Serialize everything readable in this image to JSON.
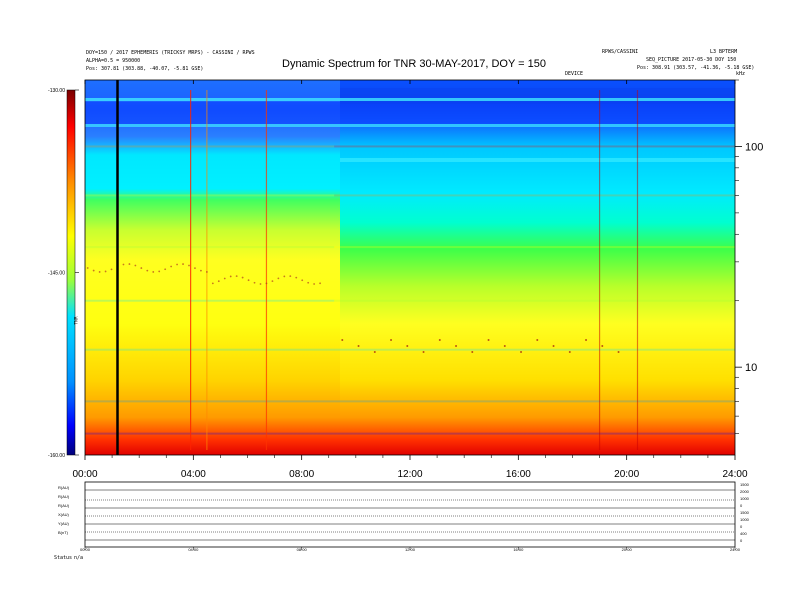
{
  "header": {
    "left_line1": "DOY=150 / 2017 EPHEMERIS (TRICKSY MRPS) - CASSINI / RPWS",
    "left_line2": "ALPHA=0.5 = 950000",
    "left_line3": "Pos: 307.81 (303.88, -40.07, -5.81 GSE)",
    "right_line1": "RPWS/CASSINI",
    "right_line1b": "L3 BPTERM",
    "right_line2": "SEQ_PICTURE 2017-05-30 DOY 150",
    "right_line3": "Pos: 308.91 (303.57, -41.36, -5.18 GSE)",
    "center_tag": "DEVICE",
    "right_tag": "kHz"
  },
  "title": "Dynamic Spectrum for TNR 30-MAY-2017, DOY = 150",
  "colorbar": {
    "label": "TNR",
    "ticks": [
      "-130.00",
      "-145.00",
      "-160.00"
    ],
    "colors": [
      "#7a0000",
      "#ff0000",
      "#ff8c00",
      "#ffff00",
      "#9cff3a",
      "#00e0ff",
      "#0090ff",
      "#0000ff",
      "#00007a"
    ]
  },
  "chart_data": {
    "type": "heatmap",
    "title": "Dynamic Spectrum for TNR 30-MAY-2017, DOY = 150",
    "x_ticks": [
      "00:00",
      "04:00",
      "08:00",
      "12:00",
      "16:00",
      "20:00",
      "24:00"
    ],
    "x_range_hours": [
      0,
      24
    ],
    "y_scale": "log",
    "y_ticks": [
      "100",
      "10"
    ],
    "y_tick_values": [
      100,
      10
    ],
    "y_range": [
      4,
      200
    ],
    "colorbar_ticks": [
      -130,
      -145,
      -160
    ],
    "colorbar_range": [
      -160,
      -130
    ],
    "vertical_marker_hours": 1.2,
    "intensity_bands_below_100": [
      {
        "y": 100,
        "before_9h": -136,
        "after_9h": -135
      },
      {
        "y": 60,
        "before_9h": -141,
        "after_9h": -137
      },
      {
        "y": 35,
        "before_9h": -145,
        "after_9h": -140
      },
      {
        "y": 20,
        "before_9h": -147,
        "after_9h": -146
      },
      {
        "y": 12,
        "before_9h": -149,
        "after_9h": -149
      },
      {
        "y": 7,
        "before_9h": -152,
        "after_9h": -152
      },
      {
        "y": 5,
        "before_9h": -158,
        "after_9h": -158
      }
    ]
  },
  "lower_panel": {
    "left_labels": [
      "R(AU)",
      "R(AU)",
      "R(AU)",
      "X(AU)",
      "Y(AU)",
      "B(nT)"
    ],
    "right_labels": [
      "1500",
      "2000",
      "1000",
      "0",
      "1500",
      "1000",
      "0",
      "400",
      "0"
    ],
    "x_ticks": [
      "00:00",
      "04:00",
      "08:00",
      "12:00",
      "16:00",
      "20:00",
      "24:00"
    ],
    "footer_left": "Status",
    "footer_left2": "n/a"
  }
}
